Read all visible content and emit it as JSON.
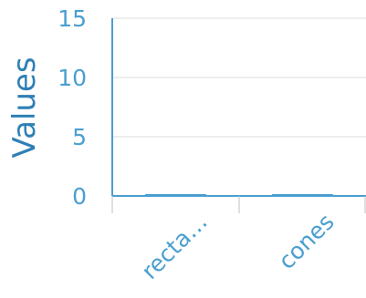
{
  "chart_data": {
    "type": "bar",
    "categories": [
      "recta…",
      "cones"
    ],
    "values": [
      0,
      0
    ],
    "ylabel": "Values",
    "xlabel": "",
    "ylim": [
      0,
      15
    ],
    "yticks": [
      0,
      5,
      10,
      15
    ],
    "grid": true,
    "colors": {
      "bar": "#4a9fd0",
      "axis": "#4a9fd0",
      "tick_label": "#4a9fd0",
      "axis_title": "#2e7fb5",
      "grid": "#dcdcdc"
    }
  }
}
